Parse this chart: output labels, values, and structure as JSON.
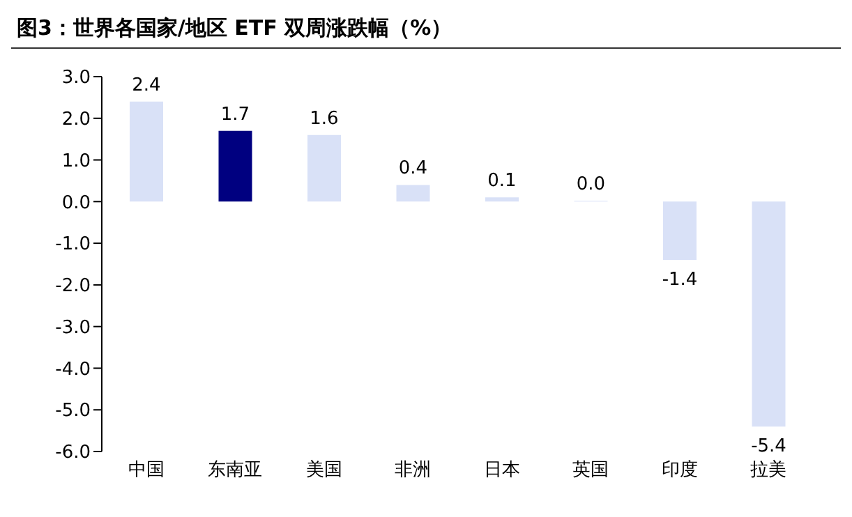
{
  "chart_data": {
    "type": "bar",
    "title": "图3：世界各国家/地区 ETF 双周涨跌幅（%）",
    "categories": [
      "中国",
      "东南亚",
      "美国",
      "非洲",
      "日本",
      "英国",
      "印度",
      "拉美"
    ],
    "values": [
      2.4,
      1.7,
      1.6,
      0.4,
      0.1,
      0.0,
      -1.4,
      -5.4
    ],
    "colors": [
      "#d9e1f7",
      "#000080",
      "#d9e1f7",
      "#d9e1f7",
      "#d9e1f7",
      "#d9e1f7",
      "#d9e1f7",
      "#d9e1f7"
    ],
    "value_labels": [
      "2.4",
      "1.7",
      "1.6",
      "0.4",
      "0.1",
      "0.0",
      "-1.4",
      "-5.4"
    ],
    "ylim": [
      -6,
      3
    ],
    "yticks": [
      {
        "value": 3,
        "label": "3.0"
      },
      {
        "value": 2,
        "label": "2.0"
      },
      {
        "value": 1,
        "label": "1.0"
      },
      {
        "value": 0,
        "label": "0.0"
      },
      {
        "value": -1,
        "label": "-1.0"
      },
      {
        "value": -2,
        "label": "-2.0"
      },
      {
        "value": -3,
        "label": "-3.0"
      },
      {
        "value": -4,
        "label": "-4.0"
      },
      {
        "value": -5,
        "label": "-5.0"
      },
      {
        "value": -6,
        "label": "-6.0"
      }
    ],
    "grid": false,
    "legend": false
  }
}
